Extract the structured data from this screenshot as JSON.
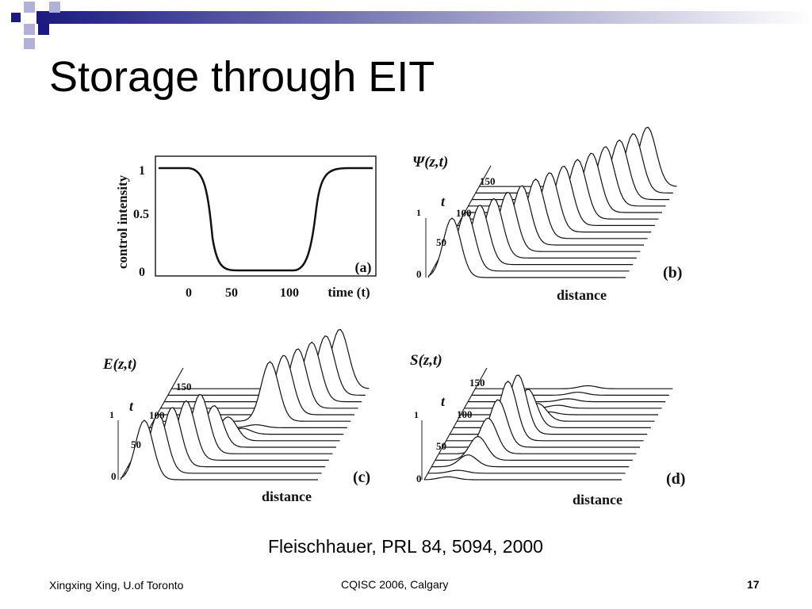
{
  "slide": {
    "title": "Storage through EIT",
    "citation": "Fleischhauer, PRL 84, 5094, 2000",
    "footer": {
      "author": "Xingxing Xing, U.of Toronto",
      "event": "CQISC 2006, Calgary",
      "page": "17"
    }
  },
  "figure": {
    "panels": [
      {
        "label": "(a)",
        "y_axis_label": "control intensity",
        "y_ticks": [
          "1",
          "0.5",
          "0"
        ],
        "x_ticks": [
          "0",
          "50",
          "100"
        ],
        "x_axis_label": "time (t)"
      },
      {
        "label": "(b)",
        "function": "Ψ(z,t)",
        "t_label": "t",
        "t_ticks": [
          "150",
          "100",
          "50"
        ],
        "amp_ticks": [
          "1",
          "0"
        ],
        "x_axis_label": "distance"
      },
      {
        "label": "(c)",
        "function": "E(z,t)",
        "t_label": "t",
        "t_ticks": [
          "150",
          "100",
          "50"
        ],
        "amp_ticks": [
          "1",
          "0"
        ],
        "x_axis_label": "distance"
      },
      {
        "label": "(d)",
        "function": "S(z,t)",
        "t_label": "t",
        "t_ticks": [
          "150",
          "100",
          "50"
        ],
        "amp_ticks": [
          "1",
          "0"
        ],
        "x_axis_label": "distance"
      }
    ]
  }
}
